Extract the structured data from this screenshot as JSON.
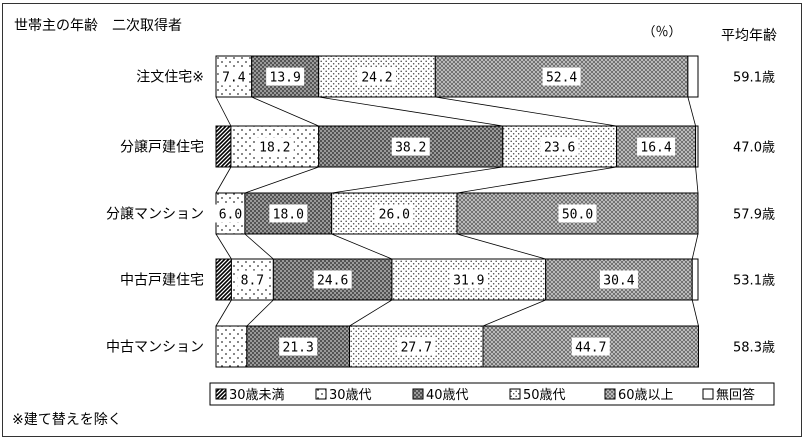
{
  "chart_data": {
    "type": "bar",
    "stacked": "100%",
    "orientation": "horizontal",
    "title": "世帯主の年齢　二次取得者",
    "unit_label": "（％）",
    "right_column_header": "平均年齢",
    "categories": [
      "注文住宅※",
      "分譲戸建住宅",
      "分譲マンション",
      "中古戸建住宅",
      "中古マンション"
    ],
    "series": [
      {
        "name": "30歳未満",
        "values": [
          0.0,
          3.1,
          0.0,
          3.2,
          0.0
        ],
        "color": "#555555",
        "pattern": "diag"
      },
      {
        "name": "30歳代",
        "values": [
          7.4,
          18.2,
          6.0,
          8.7,
          6.4
        ],
        "color": "#ffffff",
        "pattern": "sparse-dots"
      },
      {
        "name": "40歳代",
        "values": [
          13.9,
          38.2,
          18.0,
          24.6,
          21.3
        ],
        "color": "#888888",
        "pattern": "dense-dots"
      },
      {
        "name": "50歳代",
        "values": [
          24.2,
          23.6,
          26.0,
          31.9,
          27.7
        ],
        "color": "#f4f4f4",
        "pattern": "medium-dots"
      },
      {
        "name": "60歳以上",
        "values": [
          52.4,
          16.4,
          50.0,
          30.4,
          44.7
        ],
        "color": "#b8b8b8",
        "pattern": "crosshatch"
      },
      {
        "name": "無回答",
        "values": [
          2.1,
          0.5,
          0.0,
          1.2,
          0.0
        ],
        "color": "#ffffff",
        "pattern": "none"
      }
    ],
    "data_labels": [
      [
        "",
        "7.4",
        "13.9",
        "24.2",
        "52.4",
        ""
      ],
      [
        "",
        "18.2",
        "38.2",
        "23.6",
        "16.4",
        ""
      ],
      [
        "",
        "6.0",
        "18.0",
        "26.0",
        "50.0",
        ""
      ],
      [
        "",
        "8.7",
        "24.6",
        "31.9",
        "30.4",
        ""
      ],
      [
        "",
        "",
        "21.3",
        "27.7",
        "44.7",
        ""
      ]
    ],
    "average_age": [
      "59.1歳",
      "47.0歳",
      "57.9歳",
      "53.1歳",
      "58.3歳"
    ],
    "xlim": [
      0,
      100
    ],
    "grid": false,
    "legend_position": "bottom",
    "footnote": "※建て替えを除く"
  }
}
